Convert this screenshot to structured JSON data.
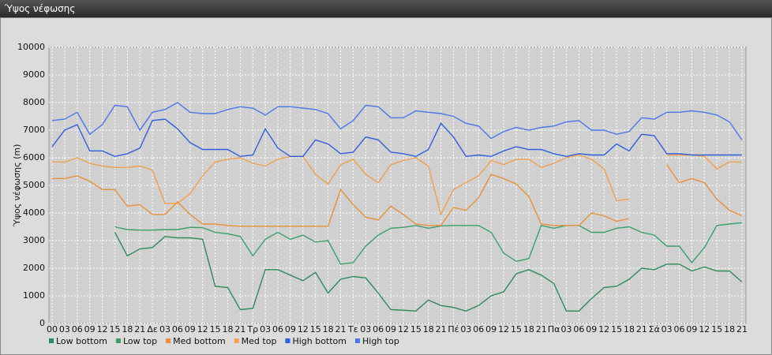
{
  "window_title": "Ύψος νέφωσης",
  "chart_data": {
    "type": "line",
    "y_label": "Ύψος νέφωσης (m)",
    "categories": [
      "00",
      "03",
      "06",
      "09",
      "12",
      "15",
      "18",
      "21",
      "Δε",
      "03",
      "06",
      "09",
      "12",
      "15",
      "18",
      "21",
      "Τρ",
      "03",
      "06",
      "09",
      "12",
      "15",
      "18",
      "21",
      "Τε",
      "03",
      "06",
      "09",
      "12",
      "15",
      "18",
      "21",
      "Πέ",
      "03",
      "06",
      "09",
      "12",
      "15",
      "18",
      "21",
      "Πα",
      "03",
      "06",
      "09",
      "12",
      "15",
      "18",
      "21",
      "Σά",
      "03",
      "06",
      "09",
      "12",
      "15",
      "18",
      "21"
    ],
    "ylim": [
      0,
      10000
    ],
    "yticks": [
      0,
      1000,
      2000,
      3000,
      4000,
      5000,
      6000,
      7000,
      8000,
      9000,
      10000
    ],
    "grid": true,
    "series": [
      {
        "name": "Low bottom",
        "color": "#2e8b57",
        "values": [
          null,
          null,
          null,
          null,
          null,
          3300,
          2450,
          2700,
          2750,
          3150,
          3100,
          3100,
          3050,
          1350,
          1300,
          500,
          550,
          1950,
          1950,
          1750,
          1550,
          1850,
          1100,
          1600,
          1700,
          1650,
          1100,
          500,
          480,
          450,
          850,
          650,
          580,
          450,
          650,
          1000,
          1150,
          1800,
          1950,
          1750,
          1450,
          450,
          450,
          900,
          1300,
          1350,
          1600,
          2000,
          1950,
          2150,
          2150,
          1900,
          2050,
          1900,
          1900,
          1500
        ]
      },
      {
        "name": "Low top",
        "color": "#3aa06a",
        "values": [
          null,
          null,
          null,
          null,
          null,
          3500,
          3400,
          3380,
          3380,
          3400,
          3400,
          3480,
          3470,
          3300,
          3250,
          3150,
          2450,
          3050,
          3300,
          3050,
          3200,
          2950,
          3000,
          2150,
          2200,
          2800,
          3200,
          3450,
          3480,
          3550,
          3450,
          3530,
          3550,
          3550,
          3550,
          3300,
          2550,
          2250,
          2350,
          3550,
          3450,
          3550,
          3550,
          3300,
          3300,
          3450,
          3500,
          3300,
          3200,
          2800,
          2800,
          2200,
          2750,
          3550,
          3600,
          3650
        ]
      },
      {
        "name": "Med bottom",
        "color": "#e8913a",
        "values": [
          5250,
          5250,
          5350,
          5150,
          4850,
          4850,
          4250,
          4300,
          3950,
          3950,
          4400,
          3950,
          3600,
          3600,
          3550,
          3520,
          3520,
          3520,
          3520,
          3520,
          3520,
          3520,
          3520,
          4850,
          4300,
          3850,
          3750,
          4250,
          3950,
          3600,
          3550,
          3550,
          4200,
          4100,
          4550,
          5400,
          5250,
          5050,
          4600,
          3600,
          3550,
          3550,
          3550,
          4000,
          3900,
          3700,
          3800,
          null,
          null,
          5750,
          5100,
          5250,
          5100,
          4500,
          4100,
          3900
        ]
      },
      {
        "name": "Med top",
        "color": "#f0a050",
        "values": [
          5850,
          5850,
          6000,
          5800,
          5700,
          5650,
          5650,
          5700,
          5550,
          4350,
          4350,
          4700,
          5350,
          5850,
          5950,
          6000,
          5800,
          5700,
          5950,
          6050,
          6050,
          5400,
          5050,
          5750,
          5950,
          5400,
          5100,
          5750,
          5900,
          6000,
          5700,
          3950,
          4850,
          5100,
          5350,
          5900,
          5750,
          5950,
          5950,
          5650,
          5800,
          6000,
          6100,
          5950,
          5600,
          4450,
          4500,
          null,
          null,
          6100,
          6100,
          6100,
          6050,
          5600,
          5850,
          5850
        ]
      },
      {
        "name": "High bottom",
        "color": "#2f5fd8",
        "values": [
          6400,
          7000,
          7200,
          6250,
          6250,
          6050,
          6150,
          6350,
          7350,
          7400,
          7050,
          6550,
          6300,
          6300,
          6300,
          6050,
          6100,
          7050,
          6350,
          6050,
          6050,
          6650,
          6500,
          6150,
          6200,
          6750,
          6650,
          6200,
          6150,
          6050,
          6300,
          7250,
          6750,
          6050,
          6100,
          6050,
          6250,
          6400,
          6300,
          6300,
          6150,
          6050,
          6150,
          6100,
          6100,
          6500,
          6250,
          6850,
          6800,
          6150,
          6150,
          6100,
          6100,
          6100,
          6100,
          6100
        ]
      },
      {
        "name": "High top",
        "color": "#4a78e8",
        "values": [
          7350,
          7400,
          7650,
          6850,
          7200,
          7900,
          7850,
          7000,
          7650,
          7750,
          8000,
          7650,
          7600,
          7600,
          7750,
          7850,
          7800,
          7550,
          7850,
          7850,
          7800,
          7750,
          7600,
          7050,
          7350,
          7900,
          7850,
          7450,
          7450,
          7700,
          7650,
          7600,
          7500,
          7250,
          7150,
          6700,
          6950,
          7100,
          7000,
          7100,
          7150,
          7300,
          7350,
          7000,
          7000,
          6850,
          6950,
          7450,
          7400,
          7650,
          7650,
          7700,
          7650,
          7550,
          7300,
          6650
        ]
      }
    ]
  }
}
